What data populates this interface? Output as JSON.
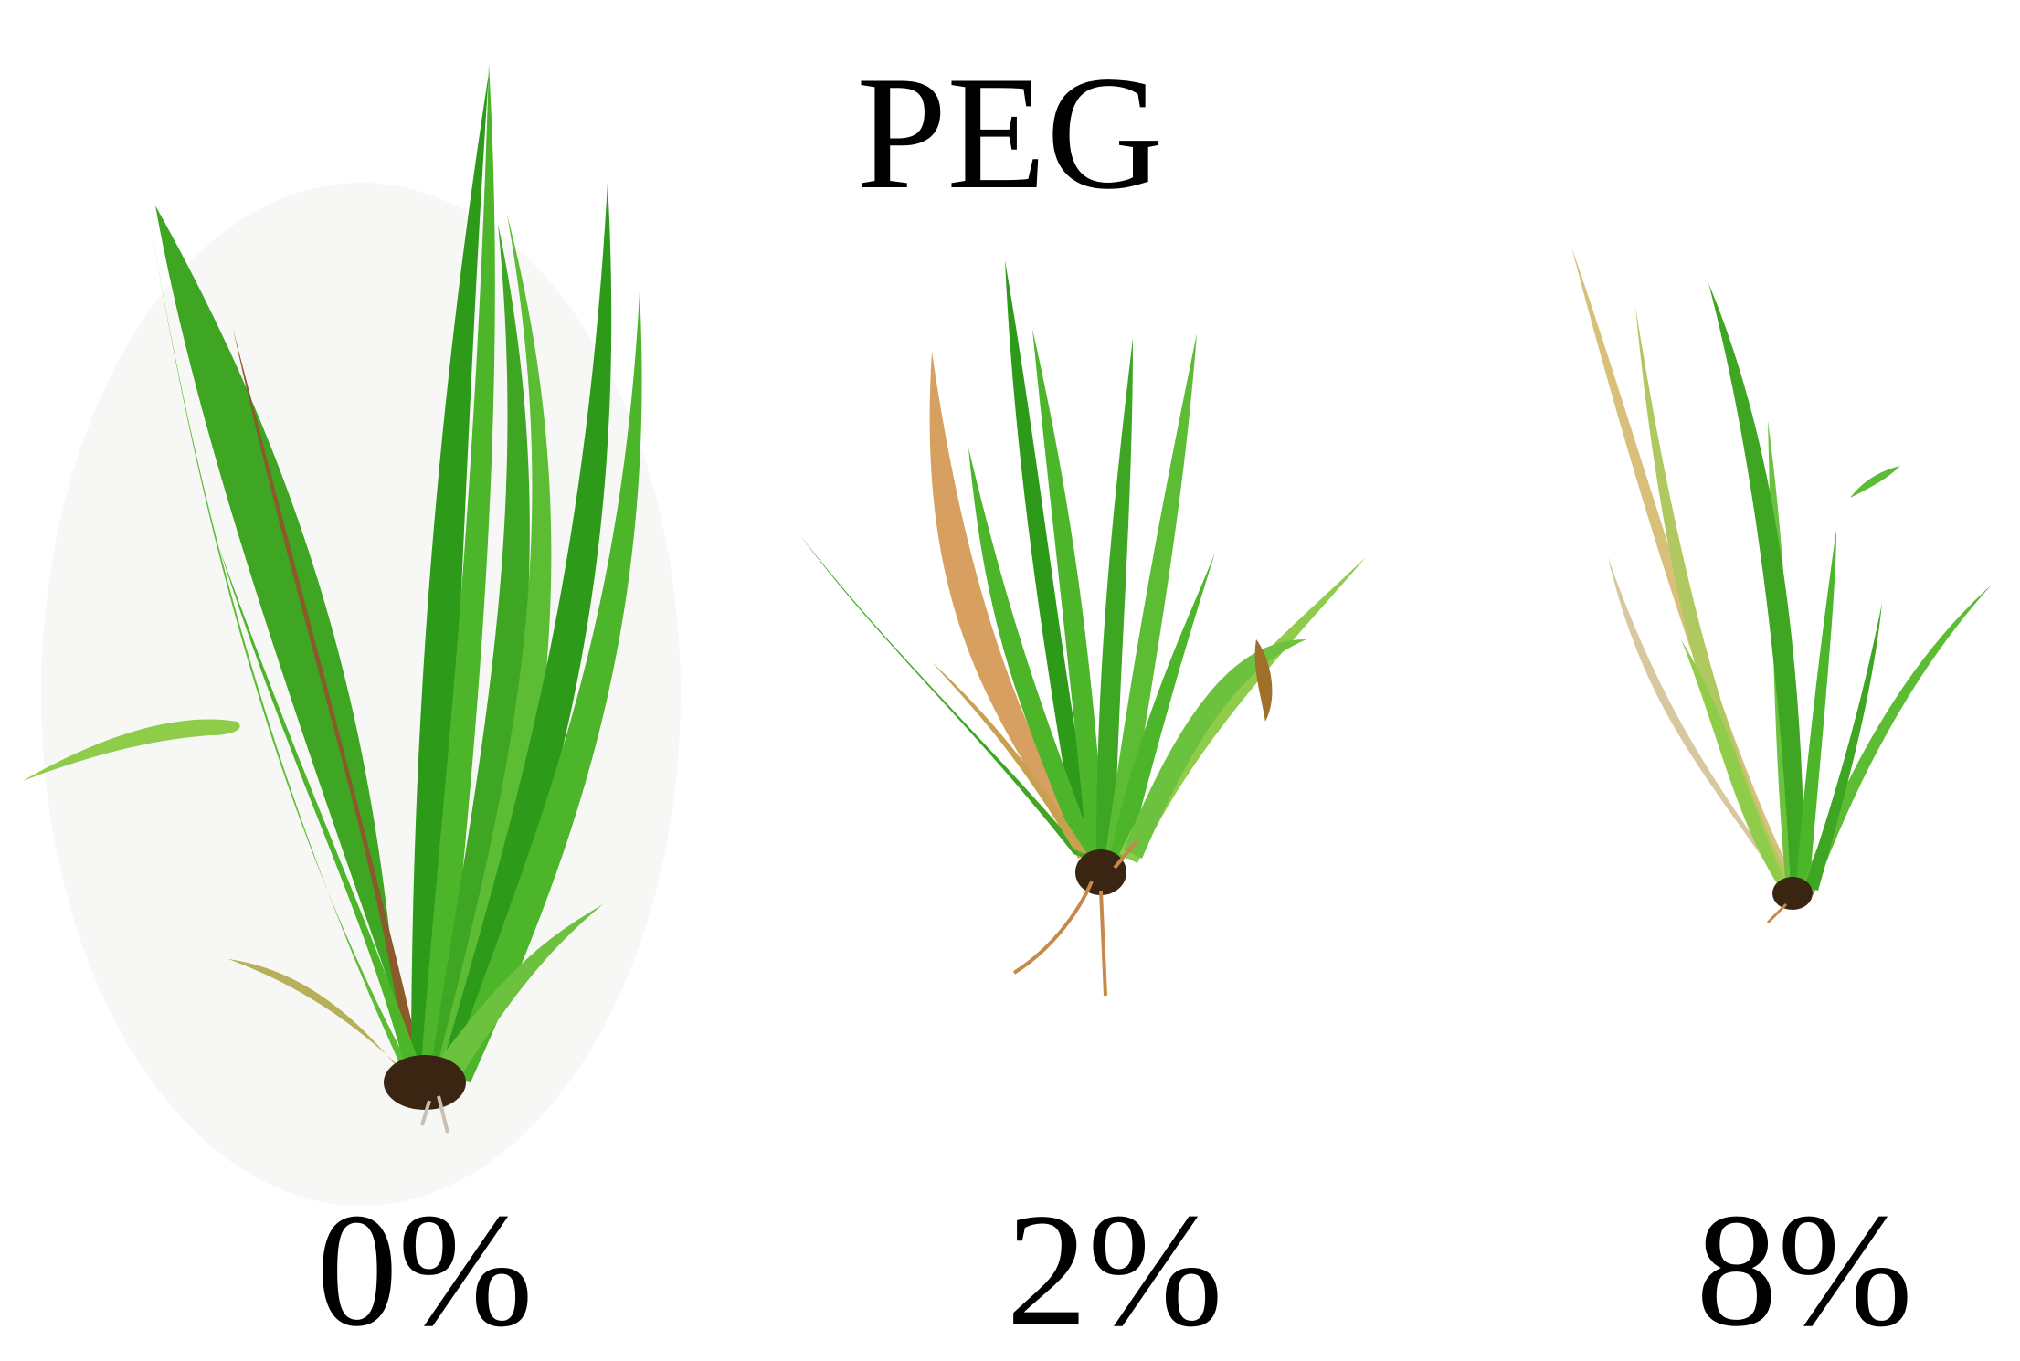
{
  "figure": {
    "title": "PEG",
    "panels": [
      {
        "label": "0%"
      },
      {
        "label": "2%"
      },
      {
        "label": "8%"
      }
    ]
  },
  "colors": {
    "leaf_dark": "#2e9a1a",
    "leaf_mid": "#4cb52a",
    "leaf_light": "#8fcc4a",
    "leaf_dry": "#d8c07a",
    "leaf_brown": "#8a5a2a",
    "root": "#3a2412",
    "root_hair": "#c58a4a"
  }
}
